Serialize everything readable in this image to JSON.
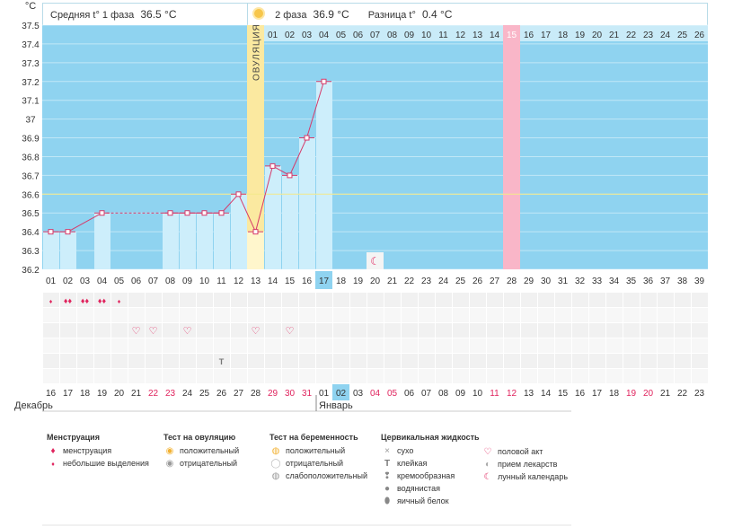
{
  "header": {
    "phase1_label": "Средняя t° 1 фаза",
    "phase1_value": "36.5 °C",
    "phase2_label": "2 фаза",
    "phase2_value": "36.9 °C",
    "diff_label": "Разница t°",
    "diff_value": "0.4 °C"
  },
  "chart_data": {
    "type": "line",
    "title": "Базальная температура",
    "ylabel": "°C",
    "ylim": [
      36.2,
      37.5
    ],
    "yticks": [
      "36.2",
      "36.3",
      "36.4",
      "36.5",
      "36.6",
      "36.7",
      "36.8",
      "36.9",
      "37",
      "37.1",
      "37.2",
      "37.3",
      "37.4",
      "37.5"
    ],
    "cycle_days": [
      "01",
      "02",
      "03",
      "04",
      "05",
      "06",
      "07",
      "08",
      "09",
      "10",
      "11",
      "12",
      "13",
      "14",
      "15",
      "16",
      "17",
      "18",
      "19",
      "20",
      "21",
      "22",
      "23",
      "24",
      "25",
      "26",
      "27",
      "28",
      "29",
      "30",
      "31",
      "32",
      "33",
      "34",
      "35",
      "36",
      "37",
      "38",
      "39"
    ],
    "phase2_days": [
      "01",
      "02",
      "03",
      "04",
      "05",
      "06",
      "07",
      "08",
      "09",
      "10",
      "11",
      "12",
      "13",
      "14",
      "15",
      "16",
      "17",
      "18",
      "19",
      "20",
      "21",
      "22",
      "23",
      "24",
      "25",
      "26"
    ],
    "ovulation_label": "ОВУЛЯЦИЯ",
    "ovulation_day": 13,
    "current_day": 17,
    "highlight_phase2_day": "15",
    "coverline": 36.6,
    "temperatures": [
      {
        "day": 1,
        "t": 36.4
      },
      {
        "day": 2,
        "t": 36.4
      },
      {
        "day": 4,
        "t": 36.5
      },
      {
        "day": 8,
        "t": 36.5
      },
      {
        "day": 9,
        "t": 36.5
      },
      {
        "day": 10,
        "t": 36.5
      },
      {
        "day": 11,
        "t": 36.5
      },
      {
        "day": 12,
        "t": 36.6
      },
      {
        "day": 13,
        "t": 36.4
      },
      {
        "day": 14,
        "t": 36.75
      },
      {
        "day": 15,
        "t": 36.7
      },
      {
        "day": 16,
        "t": 36.9
      },
      {
        "day": 17,
        "t": 37.2
      }
    ],
    "dashed_gap": [
      4,
      8
    ],
    "moon_day": 20,
    "menstruation": [
      {
        "day": 1,
        "type": "small"
      },
      {
        "day": 2,
        "type": "full"
      },
      {
        "day": 3,
        "type": "full"
      },
      {
        "day": 4,
        "type": "full"
      },
      {
        "day": 5,
        "type": "small"
      }
    ],
    "intercourse_days": [
      6,
      7,
      9,
      13,
      15
    ],
    "cervical": [
      {
        "day": 11,
        "type": "sticky"
      }
    ],
    "calendar_days": [
      "16",
      "17",
      "18",
      "19",
      "20",
      "21",
      "22",
      "23",
      "24",
      "25",
      "26",
      "27",
      "28",
      "29",
      "30",
      "31",
      "01",
      "02",
      "03",
      "04",
      "05",
      "06",
      "07",
      "08",
      "09",
      "10",
      "11",
      "12",
      "13",
      "14",
      "15",
      "16",
      "17",
      "18",
      "19",
      "20",
      "21",
      "22",
      "23"
    ],
    "calendar_red": [
      6,
      7,
      13,
      14,
      15,
      19,
      20,
      26,
      27,
      34,
      35
    ],
    "calendar_today_index": 17,
    "months": [
      "Декабрь",
      "Январь"
    ]
  },
  "legend": {
    "menstruation": {
      "title": "Менструация",
      "items": [
        "менструация",
        "небольшие выделения"
      ]
    },
    "ovulation_test": {
      "title": "Тест на овуляцию",
      "items": [
        "положительный",
        "отрицательный"
      ]
    },
    "pregnancy_test": {
      "title": "Тест на беременность",
      "items": [
        "положительный",
        "отрицательный",
        "слабоположительный"
      ]
    },
    "cervical": {
      "title": "Цервикальная жидкость",
      "items": [
        "сухо",
        "клейкая",
        "кремообразная",
        "водянистая",
        "яичный белок"
      ]
    },
    "other": {
      "items": [
        "половой акт",
        "прием лекарств",
        "лунный календарь"
      ]
    }
  },
  "icons": [
    "sun-icon",
    "drop-icon",
    "heart-icon",
    "moon-icon",
    "sticky-icon",
    "dry-icon",
    "creamy-icon",
    "watery-icon",
    "egg-white-icon",
    "pill-icon",
    "test-positive-icon",
    "test-negative-icon",
    "test-weak-icon"
  ],
  "colors": {
    "sky": "#8fd3f0",
    "bar": "#cdeefb",
    "ovulation": "#fbe9a0",
    "pink": "#f9b6c8",
    "line": "#d63a6a",
    "grid": "#bfe6f6",
    "red": "#e0245e"
  }
}
